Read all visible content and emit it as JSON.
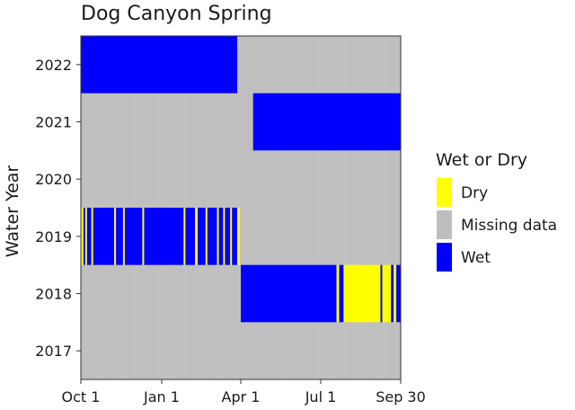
{
  "chart_data": {
    "type": "heatmap",
    "title": "Dog Canyon Spring",
    "ylabel": "Water Year",
    "xlabel": "",
    "x_range_days": [
      0,
      364
    ],
    "x_ticks": [
      {
        "label": "Oct 1",
        "day": 0
      },
      {
        "label": "Jan 1",
        "day": 92
      },
      {
        "label": "Apr 1",
        "day": 182
      },
      {
        "label": "Jul 1",
        "day": 273
      },
      {
        "label": "Sep 30",
        "day": 364
      }
    ],
    "categories": [
      "2022",
      "2021",
      "2020",
      "2019",
      "2018",
      "2017"
    ],
    "legend": {
      "title": "Wet or Dry",
      "placement": "right",
      "entries": [
        {
          "key": "dry",
          "label": "Dry",
          "color": "#ffff00"
        },
        {
          "key": "missing",
          "label": "Missing data",
          "color": "#bebebe"
        },
        {
          "key": "wet",
          "label": "Wet",
          "color": "#0000ff"
        }
      ]
    },
    "default_state": "missing",
    "rows": [
      {
        "year": "2022",
        "segments": [
          {
            "start": 0,
            "end": 178,
            "state": "wet"
          }
        ]
      },
      {
        "year": "2021",
        "segments": [
          {
            "start": 196,
            "end": 364,
            "state": "wet"
          }
        ]
      },
      {
        "year": "2020",
        "segments": []
      },
      {
        "year": "2019",
        "segments": [
          {
            "start": 0,
            "end": 3,
            "state": "dry"
          },
          {
            "start": 3,
            "end": 5,
            "state": "wet"
          },
          {
            "start": 5,
            "end": 7,
            "state": "dry"
          },
          {
            "start": 7,
            "end": 12,
            "state": "wet"
          },
          {
            "start": 12,
            "end": 14,
            "state": "dry"
          },
          {
            "start": 14,
            "end": 38,
            "state": "wet"
          },
          {
            "start": 38,
            "end": 40,
            "state": "dry"
          },
          {
            "start": 40,
            "end": 48,
            "state": "wet"
          },
          {
            "start": 48,
            "end": 50,
            "state": "dry"
          },
          {
            "start": 50,
            "end": 70,
            "state": "wet"
          },
          {
            "start": 70,
            "end": 72,
            "state": "dry"
          },
          {
            "start": 72,
            "end": 117,
            "state": "wet"
          },
          {
            "start": 117,
            "end": 119,
            "state": "dry"
          },
          {
            "start": 119,
            "end": 130,
            "state": "wet"
          },
          {
            "start": 130,
            "end": 133,
            "state": "dry"
          },
          {
            "start": 133,
            "end": 142,
            "state": "wet"
          },
          {
            "start": 142,
            "end": 144,
            "state": "dry"
          },
          {
            "start": 144,
            "end": 155,
            "state": "wet"
          },
          {
            "start": 155,
            "end": 157,
            "state": "dry"
          },
          {
            "start": 157,
            "end": 162,
            "state": "wet"
          },
          {
            "start": 162,
            "end": 164,
            "state": "dry"
          },
          {
            "start": 164,
            "end": 170,
            "state": "wet"
          },
          {
            "start": 170,
            "end": 172,
            "state": "dry"
          },
          {
            "start": 172,
            "end": 178,
            "state": "wet"
          },
          {
            "start": 178,
            "end": 181,
            "state": "dry"
          }
        ]
      },
      {
        "year": "2018",
        "segments": [
          {
            "start": 182,
            "end": 291,
            "state": "wet"
          },
          {
            "start": 291,
            "end": 294,
            "state": "dry"
          },
          {
            "start": 294,
            "end": 299,
            "state": "wet"
          },
          {
            "start": 299,
            "end": 341,
            "state": "dry"
          },
          {
            "start": 341,
            "end": 343,
            "state": "wet"
          },
          {
            "start": 343,
            "end": 353,
            "state": "dry"
          },
          {
            "start": 353,
            "end": 356,
            "state": "wet"
          },
          {
            "start": 356,
            "end": 359,
            "state": "dry"
          },
          {
            "start": 359,
            "end": 364,
            "state": "wet"
          }
        ]
      },
      {
        "year": "2017",
        "segments": []
      }
    ]
  }
}
